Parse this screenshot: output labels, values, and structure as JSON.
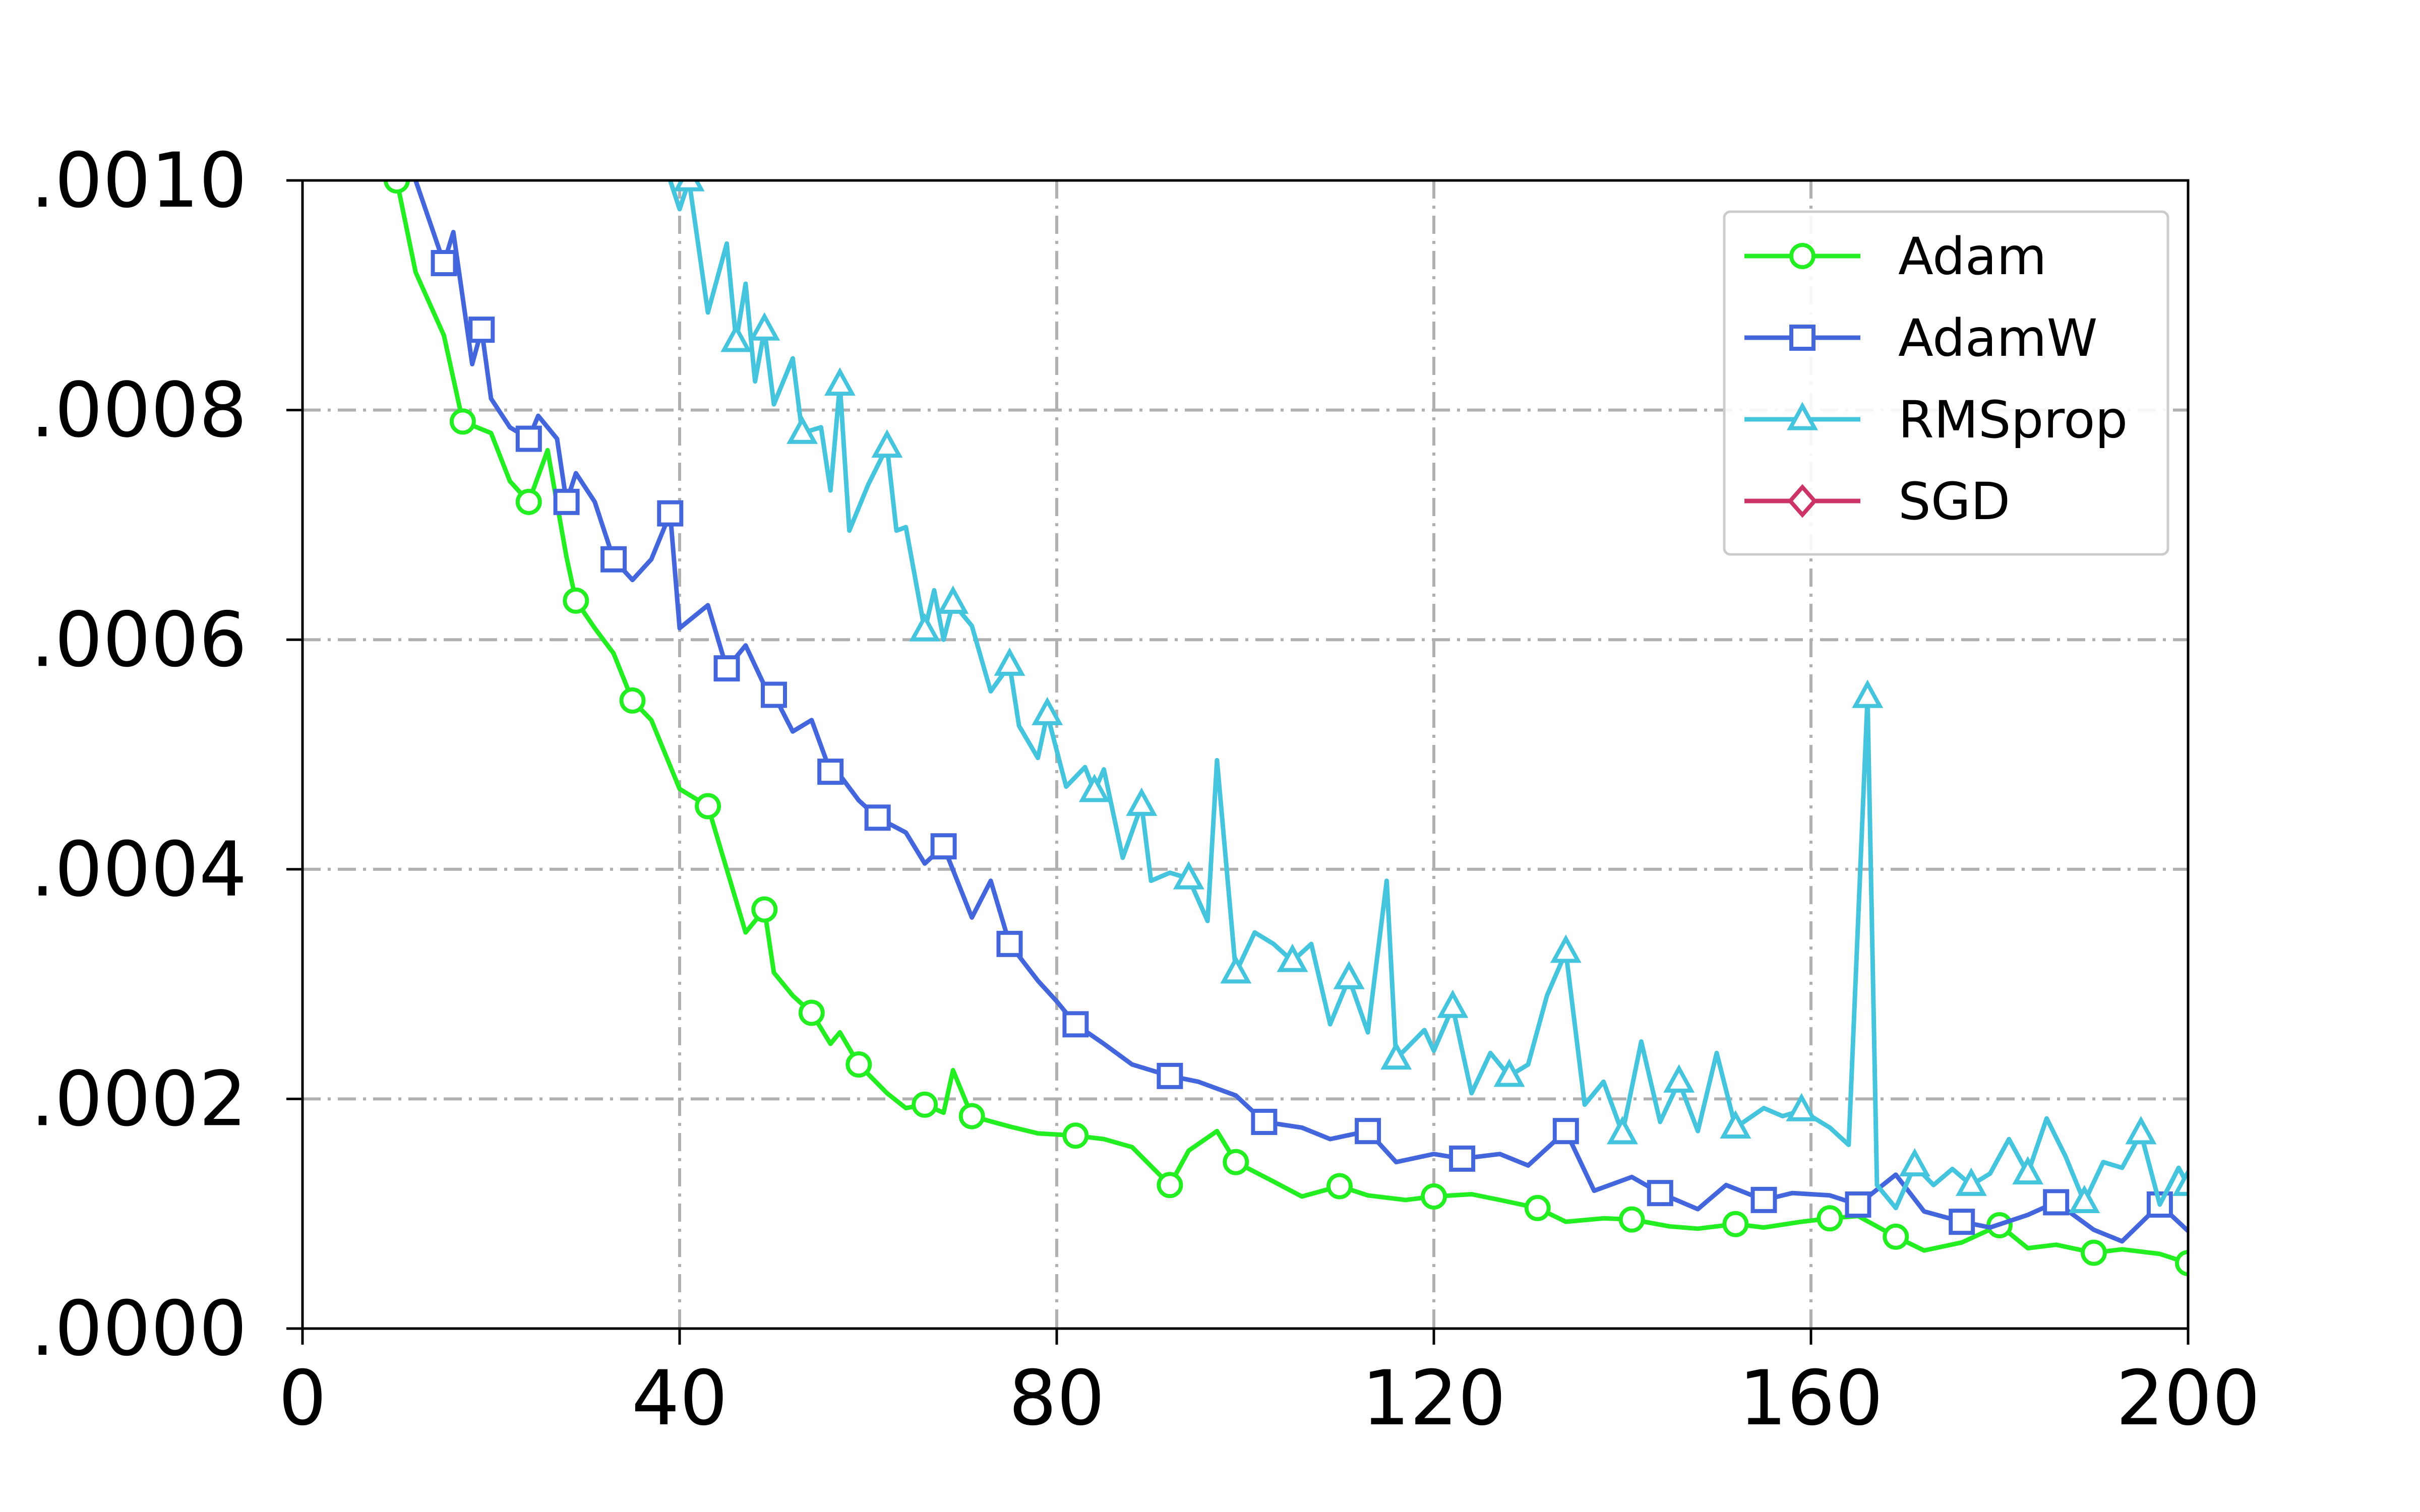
{
  "chart_data": {
    "type": "line",
    "title": "",
    "xlabel": "",
    "ylabel": "",
    "xlim": [
      0,
      200
    ],
    "ylim": [
      0.0,
      0.001
    ],
    "xticks": [
      0,
      40,
      80,
      120,
      160,
      200
    ],
    "xtick_labels": [
      "0",
      "40",
      "80",
      "120",
      "160",
      "200"
    ],
    "yticks": [
      0.0,
      0.0002,
      0.0004,
      0.0006,
      0.0008,
      0.001
    ],
    "ytick_labels": [
      ".0000",
      ".0002",
      ".0004",
      ".0006",
      ".0008",
      ".0010"
    ],
    "grid": true,
    "legend_position": "top-right",
    "series": [
      {
        "name": "Adam",
        "color": "#22ee22",
        "marker": "circle",
        "x": [
          10,
          12,
          15,
          17,
          20,
          22,
          24,
          26,
          28,
          29,
          31,
          33,
          35,
          37,
          40,
          43,
          45,
          47,
          49,
          50,
          52,
          54,
          56,
          57,
          59,
          62,
          64,
          66,
          68,
          69,
          71,
          75,
          78,
          82,
          85,
          88,
          92,
          94,
          97,
          99,
          103,
          106,
          110,
          113,
          117,
          120,
          124,
          127,
          131,
          134,
          138,
          141,
          145,
          148,
          152,
          155,
          159,
          162,
          165,
          167,
          169,
          172,
          176,
          180,
          183,
          186,
          190,
          193,
          197,
          200
        ],
        "y": [
          0.001,
          0.00092,
          0.000865,
          0.00079,
          0.00078,
          0.000738,
          0.00072,
          0.000765,
          0.000672,
          0.000634,
          0.00061,
          0.000588,
          0.000547,
          0.00053,
          0.00047,
          0.000455,
          0.0004,
          0.000345,
          0.000365,
          0.00031,
          0.00029,
          0.000275,
          0.000248,
          0.000258,
          0.00023,
          0.000205,
          0.000192,
          0.000195,
          0.000188,
          0.000225,
          0.000185,
          0.000176,
          0.00017,
          0.000168,
          0.000165,
          0.000158,
          0.000125,
          0.000155,
          0.000172,
          0.000145,
          0.000128,
          0.000115,
          0.000124,
          0.000116,
          0.000112,
          0.000115,
          0.000117,
          0.000112,
          0.000105,
          9.3e-05,
          9.6e-05,
          9.5e-05,
          8.9e-05,
          8.7e-05,
          9.1e-05,
          8.8e-05,
          9.3e-05,
          9.6e-05,
          9.8e-05,
          8.9e-05,
          8e-05,
          6.8e-05,
          7.5e-05,
          9e-05,
          7e-05,
          7.3e-05,
          6.6e-05,
          6.9e-05,
          6.5e-05,
          5.7e-05
        ]
      },
      {
        "name": "AdamW",
        "color": "#4466dd",
        "marker": "square",
        "x": [
          12,
          15,
          16,
          18,
          19,
          20,
          22,
          24,
          25,
          27,
          28,
          29,
          31,
          33,
          35,
          37,
          39,
          40,
          43,
          45,
          47,
          49,
          50,
          52,
          54,
          56,
          57,
          59,
          61,
          64,
          66,
          68,
          71,
          73,
          75,
          78,
          80,
          82,
          85,
          88,
          92,
          95,
          99,
          102,
          106,
          109,
          113,
          116,
          120,
          123,
          127,
          130,
          134,
          137,
          141,
          144,
          148,
          151,
          155,
          158,
          162,
          165,
          169,
          172,
          176,
          179,
          183,
          186,
          190,
          193,
          197,
          200
        ],
        "y": [
          0.001,
          0.000928,
          0.000955,
          0.00084,
          0.00087,
          0.00081,
          0.000785,
          0.000775,
          0.000795,
          0.000775,
          0.00072,
          0.000745,
          0.00072,
          0.00067,
          0.000652,
          0.00067,
          0.00071,
          0.00061,
          0.00063,
          0.000575,
          0.000595,
          0.00056,
          0.000552,
          0.00052,
          0.00053,
          0.000485,
          0.000482,
          0.00046,
          0.000445,
          0.000432,
          0.000405,
          0.00042,
          0.000358,
          0.00039,
          0.000335,
          0.000303,
          0.000285,
          0.000265,
          0.000248,
          0.00023,
          0.00022,
          0.000215,
          0.000203,
          0.00018,
          0.000175,
          0.000165,
          0.000172,
          0.000145,
          0.000152,
          0.000148,
          0.000152,
          0.000142,
          0.000172,
          0.00012,
          0.000132,
          0.000118,
          0.000104,
          0.000125,
          0.000112,
          0.000118,
          0.000116,
          0.000108,
          0.000134,
          0.000102,
          9.3e-05,
          8.8e-05,
          9.9e-05,
          0.00011,
          8.6e-05,
          7.6e-05,
          0.000108,
          8.5e-05
        ]
      },
      {
        "name": "RMSprop",
        "color": "#44c4dd",
        "marker": "triangle",
        "x": [
          39,
          40,
          41,
          43,
          45,
          46,
          47,
          48,
          49,
          50,
          52,
          53,
          55,
          56,
          57,
          58,
          60,
          62,
          63,
          64,
          66,
          67,
          68,
          69,
          71,
          73,
          75,
          76,
          78,
          79,
          81,
          83,
          84,
          85,
          87,
          89,
          90,
          92,
          94,
          96,
          97,
          99,
          101,
          103,
          105,
          107,
          109,
          111,
          113,
          115,
          116,
          119,
          120,
          122,
          124,
          126,
          128,
          130,
          132,
          134,
          136,
          138,
          140,
          142,
          144,
          146,
          148,
          150,
          152,
          155,
          157,
          159,
          162,
          164,
          166,
          167,
          169,
          171,
          173,
          175,
          177,
          179,
          181,
          183,
          185,
          187,
          189,
          191,
          193,
          195,
          197,
          199,
          200
        ],
        "y": [
          0.001,
          0.000975,
          0.001,
          0.000885,
          0.000945,
          0.00086,
          0.00091,
          0.000825,
          0.00087,
          0.000805,
          0.000845,
          0.00078,
          0.000785,
          0.00073,
          0.000822,
          0.000695,
          0.000735,
          0.000768,
          0.000695,
          0.000698,
          0.000608,
          0.000643,
          0.0006,
          0.000632,
          0.000612,
          0.000555,
          0.000578,
          0.000525,
          0.000497,
          0.000535,
          0.000472,
          0.000489,
          0.000468,
          0.000487,
          0.00041,
          0.000456,
          0.00039,
          0.000397,
          0.000392,
          0.000355,
          0.000495,
          0.00031,
          0.000345,
          0.000335,
          0.00032,
          0.000335,
          0.000265,
          0.000305,
          0.000258,
          0.00039,
          0.000235,
          0.00026,
          0.000242,
          0.00028,
          0.000205,
          0.00024,
          0.00022,
          0.00023,
          0.00029,
          0.000328,
          0.000195,
          0.000215,
          0.00017,
          0.00025,
          0.00018,
          0.000215,
          0.000172,
          0.00024,
          0.000175,
          0.000192,
          0.000185,
          0.00019,
          0.000175,
          0.00016,
          0.00055,
          0.000125,
          0.000105,
          0.000142,
          0.000125,
          0.000139,
          0.000125,
          0.000135,
          0.000165,
          0.000135,
          0.000183,
          0.00015,
          0.00011,
          0.000145,
          0.00014,
          0.00017,
          0.000108,
          0.00014,
          0.000125
        ]
      },
      {
        "name": "SGD",
        "color": "#cc3366",
        "marker": "diamond",
        "x": [],
        "y": []
      }
    ]
  }
}
